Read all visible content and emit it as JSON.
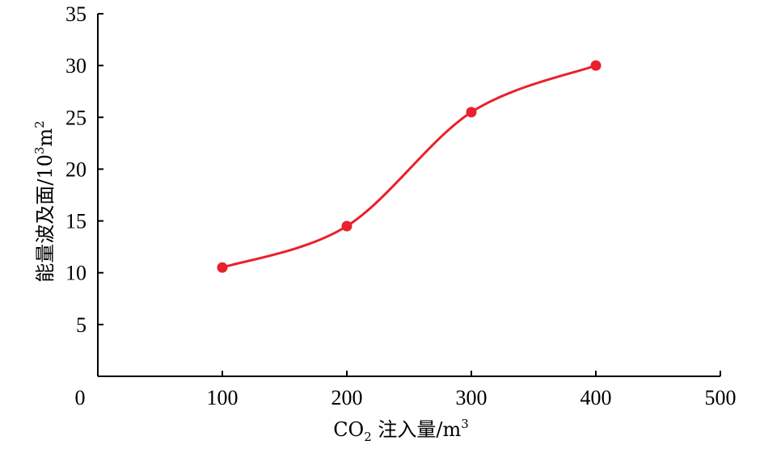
{
  "chart_data": {
    "type": "line",
    "x": [
      100,
      200,
      300,
      400
    ],
    "series": [
      {
        "values": [
          10.5,
          14.5,
          25.5,
          30
        ],
        "color": "#e8212b"
      }
    ],
    "xlabel": {
      "main": "CO",
      "sub": "2",
      "rest": " 注入量/m",
      "sup": "3"
    },
    "ylabel": {
      "main": "能量波及面/10",
      "sup1": "3",
      "mid": "m",
      "sup2": "2"
    },
    "xlim": [
      0,
      500
    ],
    "ylim": [
      0,
      35
    ],
    "xticks": [
      0,
      100,
      200,
      300,
      400,
      500
    ],
    "yticks": [
      5,
      10,
      15,
      20,
      25,
      30,
      35
    ],
    "xtick_labels": [
      "0",
      "100",
      "200",
      "300",
      "400",
      "500"
    ],
    "ytick_labels": [
      "5",
      "10",
      "15",
      "20",
      "25",
      "30",
      "35"
    ],
    "grid": false,
    "smooth": true,
    "markers": "circle"
  }
}
